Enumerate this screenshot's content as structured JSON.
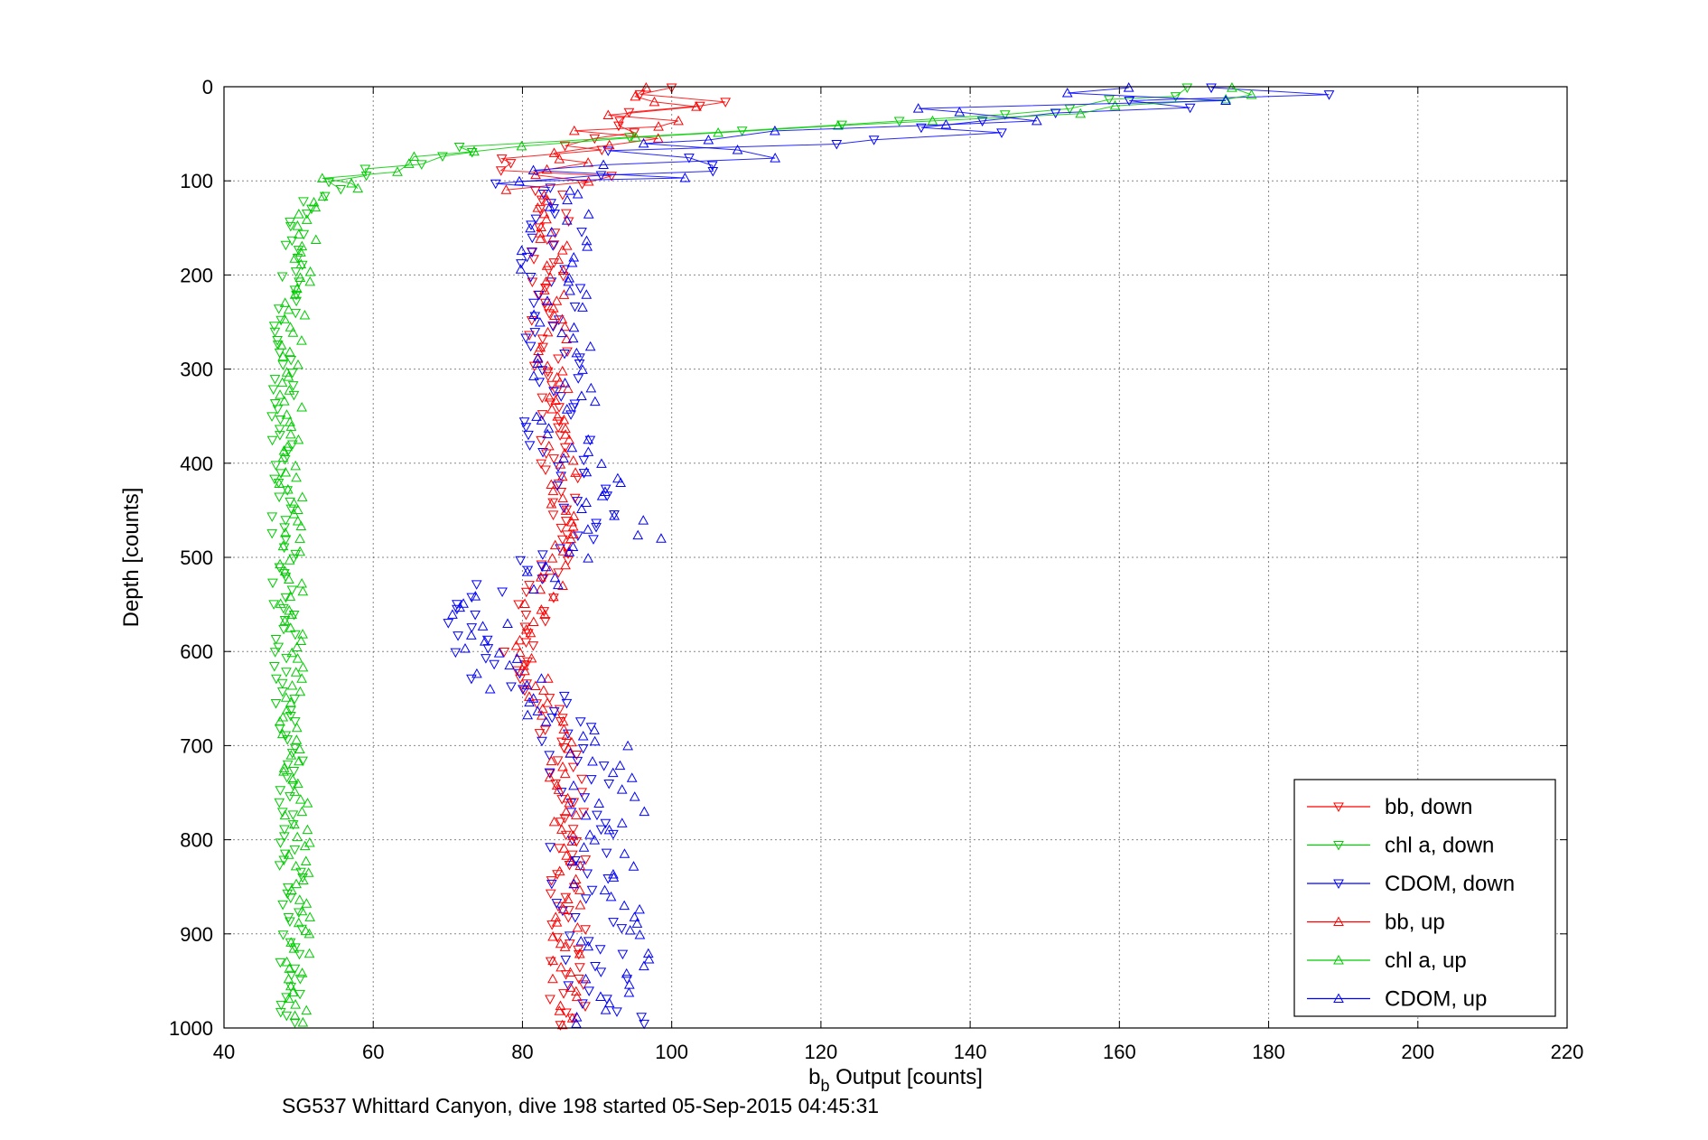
{
  "chart_data": {
    "type": "scatter",
    "xlabel": "b",
    "xlabel_sub": "b",
    "xlabel_rest": " Output [counts]",
    "ylabel": "Depth [counts]",
    "caption": "SG537 Whittard Canyon, dive 198 started 05-Sep-2015 04:45:31",
    "xlim": [
      40,
      220
    ],
    "ylim": [
      0,
      1000
    ],
    "y_reversed": true,
    "grid": true,
    "legend_position": "bottom-right",
    "xticks": [
      40,
      60,
      80,
      100,
      120,
      140,
      160,
      180,
      200,
      220
    ],
    "yticks": [
      0,
      100,
      200,
      300,
      400,
      500,
      600,
      700,
      800,
      900,
      1000
    ],
    "colors": {
      "bb": "#ff0000",
      "chl": "#00cc00",
      "cdom": "#0000ff"
    },
    "series": [
      {
        "name": "bb, down",
        "color": "#ff0000",
        "marker": "triangle-down",
        "profile": [
          [
            0,
            104
          ],
          [
            10,
            103
          ],
          [
            20,
            100
          ],
          [
            30,
            99
          ],
          [
            40,
            96
          ],
          [
            50,
            92
          ],
          [
            60,
            88
          ],
          [
            70,
            86
          ],
          [
            80,
            85
          ],
          [
            90,
            85
          ],
          [
            100,
            84
          ],
          [
            125,
            84
          ],
          [
            150,
            84
          ],
          [
            200,
            83
          ],
          [
            250,
            83
          ],
          [
            300,
            84
          ],
          [
            350,
            84
          ],
          [
            400,
            85
          ],
          [
            450,
            86
          ],
          [
            500,
            85
          ],
          [
            520,
            84
          ],
          [
            540,
            82
          ],
          [
            560,
            81
          ],
          [
            580,
            80
          ],
          [
            600,
            80
          ],
          [
            620,
            81
          ],
          [
            640,
            82
          ],
          [
            660,
            84
          ],
          [
            700,
            85
          ],
          [
            750,
            86
          ],
          [
            800,
            86
          ],
          [
            850,
            86
          ],
          [
            900,
            86
          ],
          [
            950,
            86
          ],
          [
            1000,
            86
          ]
        ],
        "spread": 2.5,
        "count": 150,
        "seed": 11
      },
      {
        "name": "chl a, down",
        "color": "#00cc00",
        "marker": "triangle-down",
        "profile": [
          [
            0,
            172
          ],
          [
            10,
            168
          ],
          [
            20,
            155
          ],
          [
            30,
            140
          ],
          [
            40,
            120
          ],
          [
            50,
            100
          ],
          [
            60,
            80
          ],
          [
            70,
            68
          ],
          [
            80,
            62
          ],
          [
            90,
            58
          ],
          [
            100,
            55
          ],
          [
            110,
            53
          ],
          [
            125,
            51
          ],
          [
            150,
            50
          ],
          [
            200,
            49
          ],
          [
            250,
            48
          ],
          [
            300,
            48
          ],
          [
            400,
            48
          ],
          [
            500,
            48
          ],
          [
            600,
            48
          ],
          [
            700,
            49
          ],
          [
            800,
            49
          ],
          [
            900,
            49
          ],
          [
            1000,
            49
          ]
        ],
        "spread": 1.6,
        "count": 150,
        "seed": 22
      },
      {
        "name": "CDOM, down",
        "color": "#0000ff",
        "marker": "triangle-down",
        "profile": [
          [
            0,
            180
          ],
          [
            10,
            175
          ],
          [
            20,
            160
          ],
          [
            30,
            150
          ],
          [
            40,
            145
          ],
          [
            50,
            130
          ],
          [
            60,
            110
          ],
          [
            70,
            102
          ],
          [
            80,
            96
          ],
          [
            90,
            92
          ],
          [
            100,
            88
          ],
          [
            130,
            85
          ],
          [
            160,
            84
          ],
          [
            200,
            83
          ],
          [
            250,
            84
          ],
          [
            300,
            84
          ],
          [
            350,
            84
          ],
          [
            400,
            86
          ],
          [
            450,
            89
          ],
          [
            480,
            88
          ],
          [
            500,
            84
          ],
          [
            520,
            80
          ],
          [
            540,
            76
          ],
          [
            560,
            74
          ],
          [
            580,
            73
          ],
          [
            600,
            73
          ],
          [
            620,
            75
          ],
          [
            640,
            80
          ],
          [
            660,
            84
          ],
          [
            700,
            86
          ],
          [
            750,
            88
          ],
          [
            800,
            88
          ],
          [
            850,
            88
          ],
          [
            900,
            90
          ],
          [
            950,
            90
          ],
          [
            1000,
            92
          ]
        ],
        "spread": 4.5,
        "count": 150,
        "seed": 33
      },
      {
        "name": "bb, up",
        "color": "#ff0000",
        "marker": "triangle-up",
        "profile": [
          [
            0,
            100
          ],
          [
            10,
            98
          ],
          [
            20,
            97
          ],
          [
            30,
            97
          ],
          [
            40,
            95
          ],
          [
            50,
            93
          ],
          [
            60,
            90
          ],
          [
            70,
            87
          ],
          [
            80,
            86
          ],
          [
            90,
            85
          ],
          [
            100,
            84
          ],
          [
            150,
            84
          ],
          [
            200,
            84
          ],
          [
            300,
            84
          ],
          [
            400,
            85
          ],
          [
            450,
            86
          ],
          [
            500,
            85
          ],
          [
            540,
            83
          ],
          [
            560,
            81
          ],
          [
            600,
            80
          ],
          [
            640,
            82
          ],
          [
            700,
            85
          ],
          [
            800,
            86
          ],
          [
            900,
            86
          ],
          [
            1000,
            86
          ]
        ],
        "spread": 2.0,
        "count": 150,
        "seed": 44
      },
      {
        "name": "chl a, up",
        "color": "#00cc00",
        "marker": "triangle-up",
        "profile": [
          [
            0,
            178
          ],
          [
            10,
            175
          ],
          [
            20,
            165
          ],
          [
            30,
            150
          ],
          [
            40,
            128
          ],
          [
            50,
            108
          ],
          [
            60,
            85
          ],
          [
            70,
            72
          ],
          [
            80,
            65
          ],
          [
            90,
            60
          ],
          [
            100,
            57
          ],
          [
            110,
            55
          ],
          [
            125,
            52
          ],
          [
            150,
            51
          ],
          [
            200,
            50
          ],
          [
            300,
            49
          ],
          [
            400,
            49
          ],
          [
            500,
            49
          ],
          [
            600,
            49
          ],
          [
            700,
            49
          ],
          [
            800,
            50
          ],
          [
            900,
            50
          ],
          [
            1000,
            50
          ]
        ],
        "spread": 1.6,
        "count": 150,
        "seed": 55
      },
      {
        "name": "CDOM, up",
        "color": "#0000ff",
        "marker": "triangle-up",
        "profile": [
          [
            0,
            170
          ],
          [
            10,
            165
          ],
          [
            20,
            150
          ],
          [
            30,
            140
          ],
          [
            40,
            130
          ],
          [
            50,
            118
          ],
          [
            60,
            108
          ],
          [
            70,
            100
          ],
          [
            80,
            95
          ],
          [
            90,
            90
          ],
          [
            100,
            88
          ],
          [
            150,
            85
          ],
          [
            200,
            84
          ],
          [
            300,
            85
          ],
          [
            400,
            87
          ],
          [
            450,
            92
          ],
          [
            480,
            94
          ],
          [
            500,
            88
          ],
          [
            540,
            78
          ],
          [
            560,
            75
          ],
          [
            600,
            75
          ],
          [
            640,
            80
          ],
          [
            680,
            88
          ],
          [
            700,
            90
          ],
          [
            750,
            92
          ],
          [
            800,
            92
          ],
          [
            850,
            91
          ],
          [
            900,
            92
          ],
          [
            950,
            92
          ],
          [
            1000,
            92
          ]
        ],
        "spread": 5.0,
        "count": 150,
        "seed": 66
      }
    ]
  }
}
